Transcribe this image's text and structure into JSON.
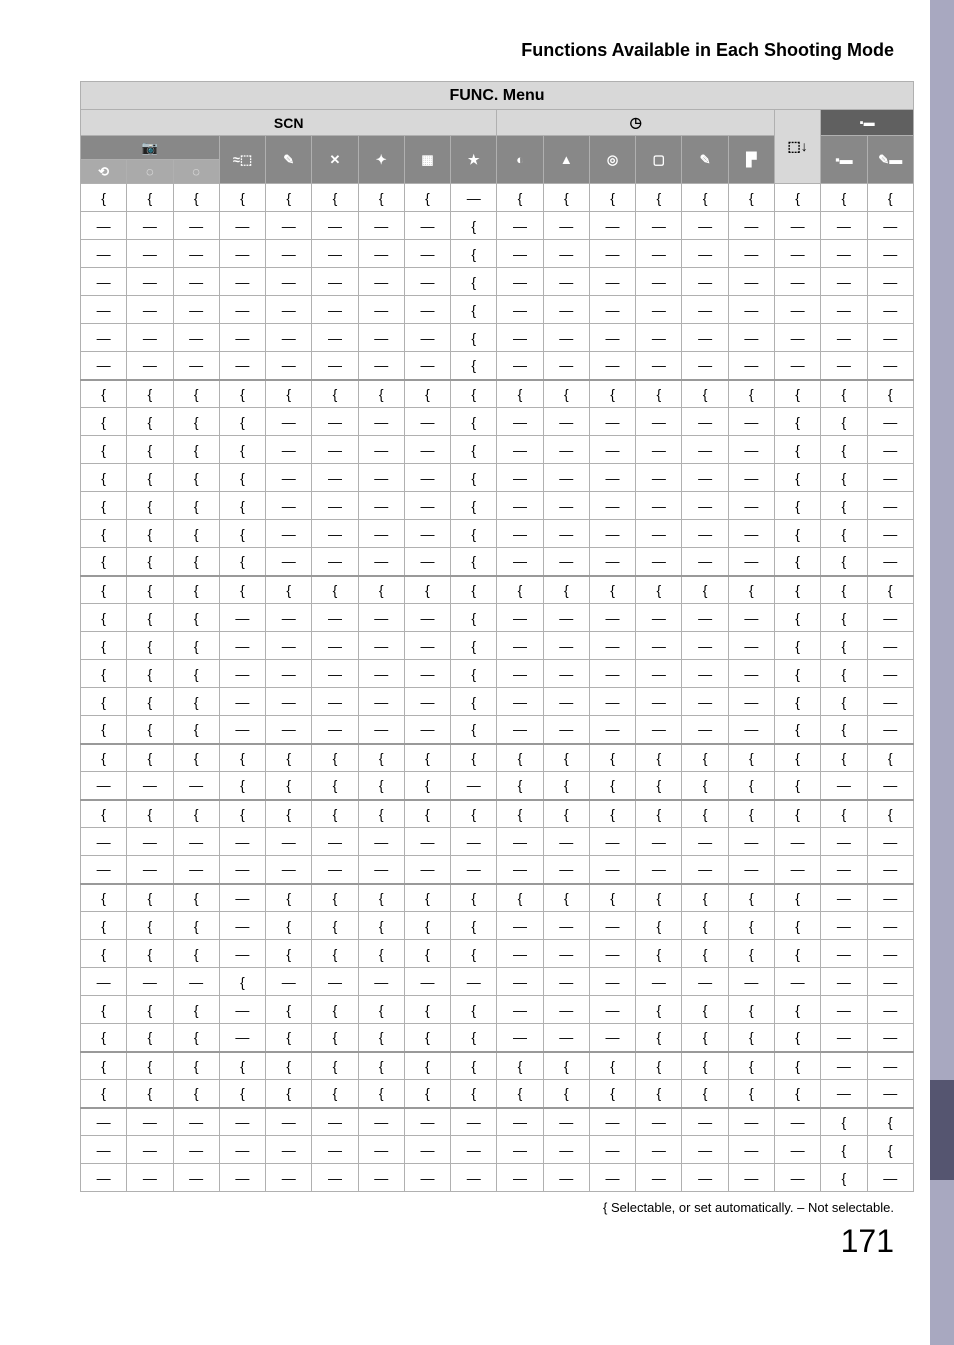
{
  "page": {
    "title": "Functions Available in Each Shooting Mode",
    "top_header": "FUNC. Menu",
    "section_scn": "SCN",
    "section_creative": "◷",
    "section_movie": "▪▬",
    "legend": "{ Selectable, or set automatically. – Not selectable.",
    "page_number": "171"
  },
  "icons": {
    "row1_col1_3": "📷",
    "row1_col4": "≈⬚",
    "row1_col5": "✎",
    "row1_col6": "✕",
    "row1_col7": "✦",
    "row1_col8": "▦",
    "row1_col9": "★",
    "row1_col10": "◐",
    "row1_col11": "▲",
    "row1_col12": "◎",
    "row1_col13": "▢",
    "row1_col14": "✎",
    "row1_col15": "▛",
    "row1_col16": "⬚↓",
    "row1_col17": "▪▬",
    "row1_col18": "✎▬",
    "row2_col1": "⟲",
    "row2_col2": "◌",
    "row2_col3": "◌"
  },
  "symbols": {
    "o": "{",
    "d": "—"
  },
  "rows": [
    [
      "o",
      "o",
      "o",
      "o",
      "o",
      "o",
      "o",
      "o",
      "d",
      "o",
      "o",
      "o",
      "o",
      "o",
      "o",
      "o",
      "o",
      "o"
    ],
    [
      "d",
      "d",
      "d",
      "d",
      "d",
      "d",
      "d",
      "d",
      "o",
      "d",
      "d",
      "d",
      "d",
      "d",
      "d",
      "d",
      "d",
      "d"
    ],
    [
      "d",
      "d",
      "d",
      "d",
      "d",
      "d",
      "d",
      "d",
      "o",
      "d",
      "d",
      "d",
      "d",
      "d",
      "d",
      "d",
      "d",
      "d"
    ],
    [
      "d",
      "d",
      "d",
      "d",
      "d",
      "d",
      "d",
      "d",
      "o",
      "d",
      "d",
      "d",
      "d",
      "d",
      "d",
      "d",
      "d",
      "d"
    ],
    [
      "d",
      "d",
      "d",
      "d",
      "d",
      "d",
      "d",
      "d",
      "o",
      "d",
      "d",
      "d",
      "d",
      "d",
      "d",
      "d",
      "d",
      "d"
    ],
    [
      "d",
      "d",
      "d",
      "d",
      "d",
      "d",
      "d",
      "d",
      "o",
      "d",
      "d",
      "d",
      "d",
      "d",
      "d",
      "d",
      "d",
      "d"
    ],
    [
      "d",
      "d",
      "d",
      "d",
      "d",
      "d",
      "d",
      "d",
      "o",
      "d",
      "d",
      "d",
      "d",
      "d",
      "d",
      "d",
      "d",
      "d"
    ],
    [
      "o",
      "o",
      "o",
      "o",
      "o",
      "o",
      "o",
      "o",
      "o",
      "o",
      "o",
      "o",
      "o",
      "o",
      "o",
      "o",
      "o",
      "o"
    ],
    [
      "o",
      "o",
      "o",
      "o",
      "d",
      "d",
      "d",
      "d",
      "o",
      "d",
      "d",
      "d",
      "d",
      "d",
      "d",
      "o",
      "o",
      "d"
    ],
    [
      "o",
      "o",
      "o",
      "o",
      "d",
      "d",
      "d",
      "d",
      "o",
      "d",
      "d",
      "d",
      "d",
      "d",
      "d",
      "o",
      "o",
      "d"
    ],
    [
      "o",
      "o",
      "o",
      "o",
      "d",
      "d",
      "d",
      "d",
      "o",
      "d",
      "d",
      "d",
      "d",
      "d",
      "d",
      "o",
      "o",
      "d"
    ],
    [
      "o",
      "o",
      "o",
      "o",
      "d",
      "d",
      "d",
      "d",
      "o",
      "d",
      "d",
      "d",
      "d",
      "d",
      "d",
      "o",
      "o",
      "d"
    ],
    [
      "o",
      "o",
      "o",
      "o",
      "d",
      "d",
      "d",
      "d",
      "o",
      "d",
      "d",
      "d",
      "d",
      "d",
      "d",
      "o",
      "o",
      "d"
    ],
    [
      "o",
      "o",
      "o",
      "o",
      "d",
      "d",
      "d",
      "d",
      "o",
      "d",
      "d",
      "d",
      "d",
      "d",
      "d",
      "o",
      "o",
      "d"
    ],
    [
      "o",
      "o",
      "o",
      "o",
      "o",
      "o",
      "o",
      "o",
      "o",
      "o",
      "o",
      "o",
      "o",
      "o",
      "o",
      "o",
      "o",
      "o"
    ],
    [
      "o",
      "o",
      "o",
      "d",
      "d",
      "d",
      "d",
      "d",
      "o",
      "d",
      "d",
      "d",
      "d",
      "d",
      "d",
      "o",
      "o",
      "d"
    ],
    [
      "o",
      "o",
      "o",
      "d",
      "d",
      "d",
      "d",
      "d",
      "o",
      "d",
      "d",
      "d",
      "d",
      "d",
      "d",
      "o",
      "o",
      "d"
    ],
    [
      "o",
      "o",
      "o",
      "d",
      "d",
      "d",
      "d",
      "d",
      "o",
      "d",
      "d",
      "d",
      "d",
      "d",
      "d",
      "o",
      "o",
      "d"
    ],
    [
      "o",
      "o",
      "o",
      "d",
      "d",
      "d",
      "d",
      "d",
      "o",
      "d",
      "d",
      "d",
      "d",
      "d",
      "d",
      "o",
      "o",
      "d"
    ],
    [
      "o",
      "o",
      "o",
      "d",
      "d",
      "d",
      "d",
      "d",
      "o",
      "d",
      "d",
      "d",
      "d",
      "d",
      "d",
      "o",
      "o",
      "d"
    ],
    [
      "o",
      "o",
      "o",
      "o",
      "o",
      "o",
      "o",
      "o",
      "o",
      "o",
      "o",
      "o",
      "o",
      "o",
      "o",
      "o",
      "o",
      "o"
    ],
    [
      "d",
      "d",
      "d",
      "o",
      "o",
      "o",
      "o",
      "o",
      "d",
      "o",
      "o",
      "o",
      "o",
      "o",
      "o",
      "o",
      "d",
      "d"
    ],
    [
      "o",
      "o",
      "o",
      "o",
      "o",
      "o",
      "o",
      "o",
      "o",
      "o",
      "o",
      "o",
      "o",
      "o",
      "o",
      "o",
      "o",
      "o"
    ],
    [
      "d",
      "d",
      "d",
      "d",
      "d",
      "d",
      "d",
      "d",
      "d",
      "d",
      "d",
      "d",
      "d",
      "d",
      "d",
      "d",
      "d",
      "d"
    ],
    [
      "d",
      "d",
      "d",
      "d",
      "d",
      "d",
      "d",
      "d",
      "d",
      "d",
      "d",
      "d",
      "d",
      "d",
      "d",
      "d",
      "d",
      "d"
    ],
    [
      "o",
      "o",
      "o",
      "d",
      "o",
      "o",
      "o",
      "o",
      "o",
      "o",
      "o",
      "o",
      "o",
      "o",
      "o",
      "o",
      "d",
      "d"
    ],
    [
      "o",
      "o",
      "o",
      "d",
      "o",
      "o",
      "o",
      "o",
      "o",
      "d",
      "d",
      "d",
      "o",
      "o",
      "o",
      "o",
      "d",
      "d"
    ],
    [
      "o",
      "o",
      "o",
      "d",
      "o",
      "o",
      "o",
      "o",
      "o",
      "d",
      "d",
      "d",
      "o",
      "o",
      "o",
      "o",
      "d",
      "d"
    ],
    [
      "d",
      "d",
      "d",
      "o",
      "d",
      "d",
      "d",
      "d",
      "d",
      "d",
      "d",
      "d",
      "d",
      "d",
      "d",
      "d",
      "d",
      "d"
    ],
    [
      "o",
      "o",
      "o",
      "d",
      "o",
      "o",
      "o",
      "o",
      "o",
      "d",
      "d",
      "d",
      "o",
      "o",
      "o",
      "o",
      "d",
      "d"
    ],
    [
      "o",
      "o",
      "o",
      "d",
      "o",
      "o",
      "o",
      "o",
      "o",
      "d",
      "d",
      "d",
      "o",
      "o",
      "o",
      "o",
      "d",
      "d"
    ],
    [
      "o",
      "o",
      "o",
      "o",
      "o",
      "o",
      "o",
      "o",
      "o",
      "o",
      "o",
      "o",
      "o",
      "o",
      "o",
      "o",
      "d",
      "d"
    ],
    [
      "o",
      "o",
      "o",
      "o",
      "o",
      "o",
      "o",
      "o",
      "o",
      "o",
      "o",
      "o",
      "o",
      "o",
      "o",
      "o",
      "d",
      "d"
    ],
    [
      "d",
      "d",
      "d",
      "d",
      "d",
      "d",
      "d",
      "d",
      "d",
      "d",
      "d",
      "d",
      "d",
      "d",
      "d",
      "d",
      "o",
      "o"
    ],
    [
      "d",
      "d",
      "d",
      "d",
      "d",
      "d",
      "d",
      "d",
      "d",
      "d",
      "d",
      "d",
      "d",
      "d",
      "d",
      "d",
      "o",
      "o"
    ],
    [
      "d",
      "d",
      "d",
      "d",
      "d",
      "d",
      "d",
      "d",
      "d",
      "d",
      "d",
      "d",
      "d",
      "d",
      "d",
      "d",
      "o",
      "d"
    ]
  ],
  "group_breaks": [
    7,
    14,
    20,
    22,
    25,
    31,
    33
  ],
  "colors": {
    "page_bg": "#ffffff",
    "header_bg": "#d8d8d8",
    "icon_row_bg": "#888888",
    "icon_row2_bg": "#aaaaaa",
    "border": "#b0b0b0",
    "side_tab": "#a8a8c0",
    "side_tab_dark": "#555570"
  }
}
